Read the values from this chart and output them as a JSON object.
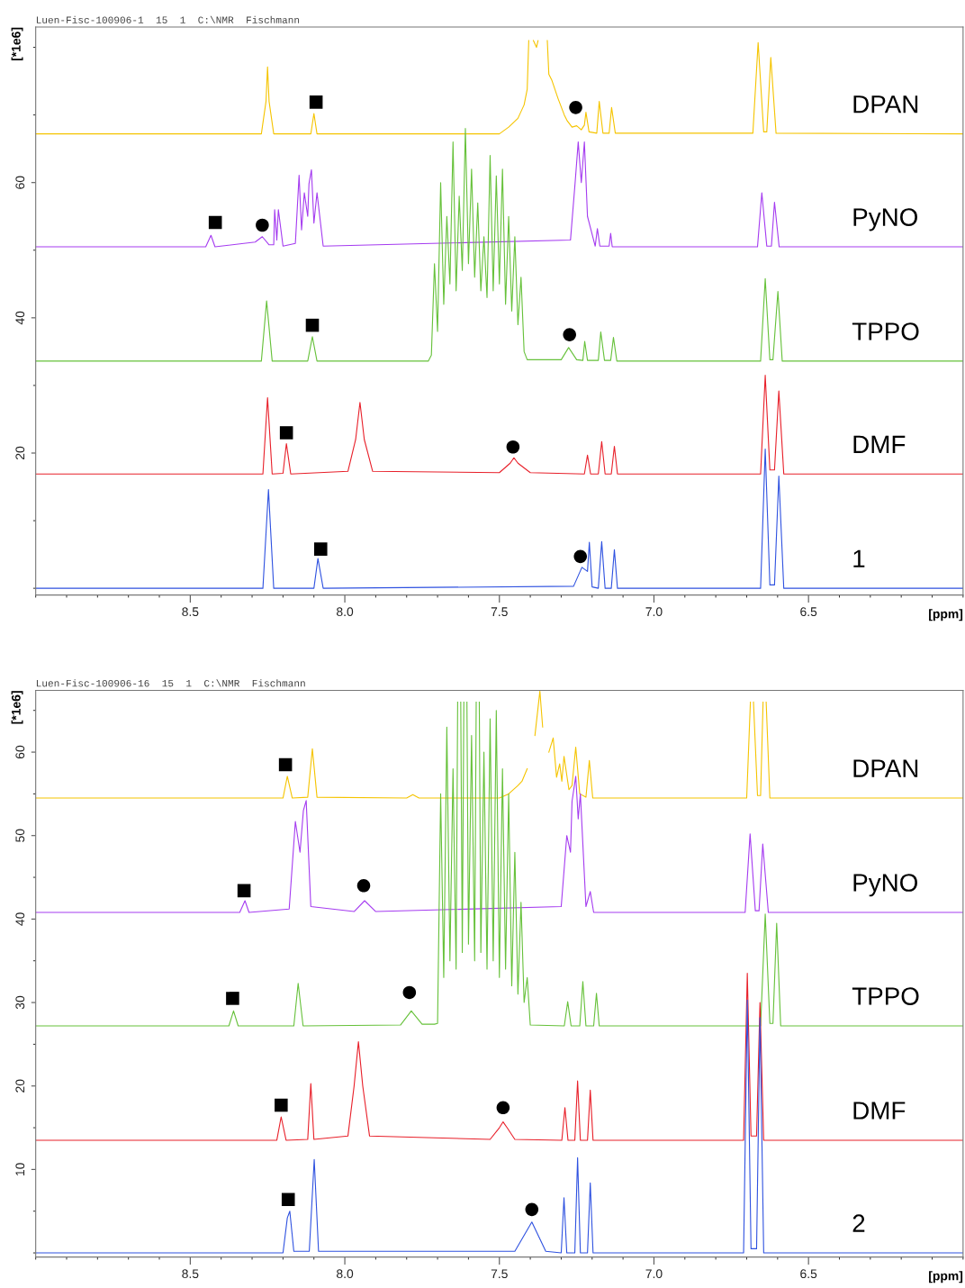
{
  "chart_data": [
    {
      "type": "line",
      "title": "Luen-Fisc-100906-1  15  1  C:\\NMR  Fischmann",
      "xlabel": "[ppm]",
      "ylabel": "[*1e6]",
      "xlim": [
        9.0,
        6.0
      ],
      "ylim": [
        -1,
        83
      ],
      "xticks": [
        {
          "value": 8.5,
          "label": "8.5"
        },
        {
          "value": 8.0,
          "label": "8.0"
        },
        {
          "value": 7.5,
          "label": "7.5"
        },
        {
          "value": 7.0,
          "label": "7.0"
        },
        {
          "value": 6.5,
          "label": "6.5"
        }
      ],
      "yticks": [
        20,
        40,
        60
      ],
      "grid": false,
      "legend": false,
      "marker": "none",
      "line_style": "solid",
      "series": [
        {
          "name": "DPAN",
          "color": "#f5c400",
          "x": [
            9.0,
            8.27,
            8.255,
            8.25,
            8.245,
            8.23,
            8.11,
            8.1,
            8.09,
            7.5,
            7.47,
            7.44,
            7.42,
            7.41,
            7.405,
            7.4,
            7.39,
            7.38,
            7.375,
            7.37,
            7.355,
            7.345,
            7.34,
            7.33,
            7.31,
            7.29,
            7.28,
            7.265,
            7.25,
            7.235,
            7.225,
            7.22,
            7.21,
            7.185,
            7.177,
            7.165,
            7.145,
            7.137,
            7.125,
            6.68,
            6.663,
            6.645,
            6.635,
            6.622,
            6.605,
            6.0
          ],
          "values": [
            67.2,
            67.2,
            72,
            77.1,
            72,
            67.2,
            67.2,
            70.2,
            67.2,
            67.2,
            68.2,
            69.5,
            71.5,
            73.8,
            81,
            null,
            81,
            80,
            81,
            null,
            null,
            81,
            76,
            75.1,
            72.4,
            70,
            69.1,
            68.2,
            68.4,
            67.8,
            68.5,
            70.4,
            67.5,
            67.3,
            72.0,
            67.3,
            67.3,
            71.1,
            67.3,
            67.3,
            80.7,
            67.5,
            67.5,
            78.5,
            67.3,
            67.2
          ]
        },
        {
          "name": "PyNO",
          "color": "#a53cf0",
          "x": [
            9.0,
            8.45,
            8.433,
            8.42,
            8.29,
            8.267,
            8.245,
            8.23,
            8.227,
            8.22,
            8.215,
            8.2,
            8.16,
            8.148,
            8.14,
            8.131,
            8.12,
            8.116,
            8.108,
            8.1,
            8.09,
            8.07,
            7.27,
            7.255,
            7.245,
            7.235,
            7.225,
            7.215,
            7.19,
            7.183,
            7.175,
            7.145,
            7.14,
            7.135,
            6.665,
            6.651,
            6.635,
            6.62,
            6.61,
            6.595,
            6.0
          ],
          "values": [
            50.5,
            50.5,
            52.2,
            50.5,
            51.2,
            52.0,
            50.8,
            50.8,
            56.0,
            51.5,
            56.0,
            50.6,
            51.0,
            61.1,
            53,
            58.5,
            55,
            59.8,
            61.9,
            54,
            58.5,
            50.6,
            51.5,
            60,
            66,
            60,
            66,
            55,
            50.6,
            53.2,
            50.6,
            50.6,
            52.5,
            50.5,
            50.5,
            58.5,
            50.6,
            50.6,
            57.1,
            50.5,
            50.5
          ]
        },
        {
          "name": "TPPO",
          "color": "#66c13a",
          "x": [
            9.0,
            8.27,
            8.253,
            8.235,
            8.12,
            8.105,
            8.09,
            7.73,
            7.72,
            7.71,
            7.7,
            7.69,
            7.68,
            7.67,
            7.66,
            7.65,
            7.64,
            7.63,
            7.62,
            7.61,
            7.6,
            7.59,
            7.58,
            7.57,
            7.56,
            7.55,
            7.54,
            7.53,
            7.52,
            7.51,
            7.5,
            7.49,
            7.48,
            7.47,
            7.46,
            7.45,
            7.44,
            7.43,
            7.42,
            7.41,
            7.3,
            7.276,
            7.25,
            7.23,
            7.224,
            7.215,
            7.18,
            7.172,
            7.16,
            7.14,
            7.131,
            7.12,
            6.655,
            6.64,
            6.625,
            6.615,
            6.599,
            6.585,
            6.0
          ],
          "values": [
            33.6,
            33.6,
            42.5,
            33.6,
            33.6,
            37.2,
            33.6,
            33.6,
            34.5,
            48,
            38,
            60,
            42,
            55,
            45,
            66,
            44,
            58,
            47,
            68,
            48,
            62,
            46,
            57,
            44,
            52,
            43,
            64,
            44,
            61,
            45,
            62,
            42,
            55,
            41,
            52,
            39,
            46,
            35,
            33.8,
            33.8,
            35.6,
            33.8,
            33.7,
            36.5,
            33.7,
            33.7,
            37.9,
            33.7,
            33.7,
            37.1,
            33.6,
            33.6,
            45.8,
            33.8,
            33.8,
            43.9,
            33.6,
            33.6
          ]
        },
        {
          "name": "DMF",
          "color": "#e8202a",
          "x": [
            9.0,
            8.265,
            8.25,
            8.235,
            8.2,
            8.189,
            8.175,
            7.99,
            7.965,
            7.951,
            7.937,
            7.91,
            7.5,
            7.465,
            7.453,
            7.44,
            7.4,
            7.225,
            7.215,
            7.205,
            7.18,
            7.169,
            7.158,
            7.138,
            7.128,
            7.118,
            6.655,
            6.64,
            6.625,
            6.61,
            6.596,
            6.58,
            6.0
          ],
          "values": [
            16.9,
            16.9,
            28.2,
            16.9,
            17,
            21.4,
            16.9,
            17.3,
            22,
            27.5,
            22,
            17.3,
            17.1,
            18.5,
            19.3,
            18.5,
            17.1,
            16.9,
            19.7,
            16.9,
            16.9,
            21.7,
            16.9,
            16.9,
            21.0,
            16.9,
            16.9,
            31.5,
            17.5,
            17.5,
            29.2,
            16.9,
            16.9
          ]
        },
        {
          "name": "1",
          "color": "#2f52e0",
          "x": [
            9.0,
            8.265,
            8.247,
            8.23,
            8.1,
            8.087,
            8.07,
            7.26,
            7.233,
            7.215,
            7.209,
            7.2,
            7.18,
            7.169,
            7.158,
            7.138,
            7.128,
            7.118,
            6.655,
            6.64,
            6.625,
            6.61,
            6.596,
            6.58,
            6.0
          ],
          "values": [
            0,
            0,
            14.6,
            0,
            0,
            4.4,
            0,
            0.3,
            3.1,
            2.5,
            6.8,
            0.2,
            0,
            6.9,
            0,
            0,
            5.7,
            0,
            0,
            20.6,
            0.5,
            0.5,
            16.6,
            0,
            0
          ]
        },
        {
          "type": "scatter",
          "marker": "square",
          "color": "#000000",
          "x": [
            8.093,
            8.419,
            8.105,
            8.189,
            8.078
          ],
          "values": [
            71.9,
            54.1,
            38.9,
            23.0,
            5.8
          ]
        },
        {
          "type": "scatter",
          "marker": "circle",
          "color": "#000000",
          "x": [
            7.253,
            8.267,
            7.273,
            7.456,
            7.238
          ],
          "values": [
            71.1,
            53.7,
            37.5,
            20.9,
            4.7
          ]
        }
      ]
    },
    {
      "type": "line",
      "title": "Luen-Fisc-100906-16  15  1  C:\\NMR  Fischmann",
      "xlabel": "[ppm]",
      "ylabel": "[*1e6]",
      "xlim": [
        9.0,
        6.0
      ],
      "ylim": [
        -0.5,
        67.4
      ],
      "xticks": [
        {
          "value": 8.5,
          "label": "8.5"
        },
        {
          "value": 8.0,
          "label": "8.0"
        },
        {
          "value": 7.5,
          "label": "7.5"
        },
        {
          "value": 7.0,
          "label": "7.0"
        },
        {
          "value": 6.5,
          "label": "6.5"
        }
      ],
      "yticks": [
        10,
        20,
        30,
        40,
        50,
        60
      ],
      "grid": false,
      "legend": false,
      "marker": "none",
      "line_style": "solid",
      "series": [
        {
          "name": "DPAN",
          "color": "#f5c400",
          "x": [
            9.0,
            8.2,
            8.186,
            8.17,
            8.12,
            8.105,
            8.09,
            7.8,
            7.78,
            7.76,
            7.5,
            7.47,
            7.44,
            7.427,
            7.41,
            7.398,
            7.385,
            7.369,
            7.36,
            7.352,
            7.34,
            7.326,
            7.315,
            7.305,
            7.298,
            7.291,
            7.275,
            7.265,
            7.253,
            7.24,
            7.22,
            7.209,
            7.198,
            6.7,
            6.688,
            6.683,
            6.678,
            6.665,
            6.655,
            6.647,
            6.642,
            6.637,
            6.625,
            6.0
          ],
          "values": [
            54.5,
            54.5,
            57.1,
            54.5,
            54.6,
            60.4,
            54.6,
            54.5,
            54.9,
            54.5,
            54.5,
            55,
            56,
            56.5,
            58,
            null,
            62,
            67.3,
            63,
            null,
            60,
            61.7,
            57,
            58.6,
            56.5,
            59.5,
            55.5,
            56,
            60.6,
            55,
            54.6,
            59.0,
            54.5,
            54.5,
            66,
            null,
            66,
            54.8,
            54.8,
            66,
            null,
            66,
            54.5,
            54.5
          ]
        },
        {
          "name": "PyNO",
          "color": "#a53cf0",
          "x": [
            9.0,
            8.34,
            8.323,
            8.31,
            8.18,
            8.16,
            8.145,
            8.134,
            8.125,
            8.11,
            7.97,
            7.936,
            7.9,
            7.3,
            7.282,
            7.27,
            7.265,
            7.253,
            7.245,
            7.238,
            7.22,
            7.206,
            7.195,
            6.705,
            6.689,
            6.672,
            6.66,
            6.648,
            6.63,
            6.0
          ],
          "values": [
            40.8,
            40.8,
            42.2,
            40.8,
            41.2,
            51.7,
            48,
            53.0,
            54.2,
            41.5,
            40.9,
            42.2,
            40.9,
            41.5,
            50.0,
            48,
            54.1,
            57.1,
            52,
            55,
            41.5,
            43.3,
            40.8,
            40.8,
            50.2,
            41.0,
            41.0,
            49.0,
            40.8,
            40.8
          ]
        },
        {
          "name": "TPPO",
          "color": "#66c13a",
          "x": [
            9.0,
            8.375,
            8.36,
            8.345,
            8.165,
            8.151,
            8.135,
            7.82,
            7.785,
            7.75,
            7.71,
            7.7,
            7.69,
            7.68,
            7.67,
            7.66,
            7.65,
            7.64,
            7.635,
            7.63,
            7.625,
            7.62,
            7.615,
            7.61,
            7.605,
            7.6,
            7.59,
            7.58,
            7.575,
            7.57,
            7.565,
            7.56,
            7.55,
            7.54,
            7.53,
            7.52,
            7.51,
            7.5,
            7.49,
            7.48,
            7.47,
            7.46,
            7.45,
            7.44,
            7.43,
            7.42,
            7.41,
            7.4,
            7.29,
            7.279,
            7.268,
            7.24,
            7.23,
            7.22,
            7.195,
            7.186,
            7.177,
            6.655,
            6.64,
            6.625,
            6.615,
            6.603,
            6.59,
            6.0
          ],
          "values": [
            27.2,
            27.2,
            29.0,
            27.2,
            27.2,
            32.3,
            27.2,
            27.3,
            29.0,
            27.4,
            27.4,
            27.5,
            55,
            33,
            63,
            35,
            58,
            34,
            66,
            null,
            66,
            36,
            66,
            null,
            66,
            37,
            62,
            35,
            66,
            null,
            66,
            36,
            60,
            34,
            64,
            35,
            65,
            33,
            58,
            34,
            55,
            32,
            48,
            31,
            42,
            30,
            33,
            27.3,
            27.2,
            30.1,
            27.2,
            27.2,
            32.5,
            27.2,
            27.2,
            31.1,
            27.2,
            27.2,
            40.6,
            27.5,
            27.5,
            39.5,
            27.2,
            27.2
          ]
        },
        {
          "name": "DMF",
          "color": "#e8202a",
          "x": [
            9.0,
            8.22,
            8.206,
            8.19,
            8.12,
            8.11,
            8.1,
            7.99,
            7.97,
            7.956,
            7.942,
            7.92,
            7.53,
            7.5,
            7.488,
            7.475,
            7.45,
            7.298,
            7.288,
            7.278,
            7.256,
            7.247,
            7.238,
            7.215,
            7.206,
            7.197,
            6.71,
            6.698,
            6.686,
            6.668,
            6.657,
            6.645,
            6.0
          ],
          "values": [
            13.5,
            13.5,
            16.3,
            13.5,
            13.6,
            20.3,
            13.6,
            14,
            20,
            25.3,
            20,
            14,
            13.6,
            15,
            15.7,
            15,
            13.6,
            13.5,
            17.4,
            13.5,
            13.5,
            20.6,
            13.5,
            13.5,
            19.5,
            13.5,
            13.5,
            33.5,
            14,
            14,
            30.0,
            13.5,
            13.5
          ]
        },
        {
          "name": "2",
          "color": "#2f52e0",
          "x": [
            9.0,
            8.2,
            8.186,
            8.178,
            8.165,
            8.115,
            8.099,
            8.085,
            7.45,
            7.395,
            7.35,
            7.3,
            7.291,
            7.282,
            7.256,
            7.247,
            7.238,
            7.215,
            7.206,
            7.197,
            6.71,
            6.698,
            6.686,
            6.668,
            6.657,
            6.645,
            6.0
          ],
          "values": [
            0,
            0,
            4.2,
            5.0,
            0.2,
            0.2,
            11.2,
            0.2,
            0.2,
            3.7,
            0.2,
            0,
            6.6,
            0,
            0,
            11.4,
            0,
            0,
            8.4,
            0,
            0,
            30.3,
            0.5,
            0.5,
            28.2,
            0,
            0
          ]
        },
        {
          "type": "scatter",
          "marker": "square",
          "color": "#000000",
          "x": [
            8.192,
            8.326,
            8.363,
            8.206,
            8.183
          ],
          "values": [
            58.5,
            43.4,
            30.5,
            17.7,
            6.4
          ]
        },
        {
          "type": "scatter",
          "marker": "circle",
          "color": "#000000",
          "x": [
            7.939,
            7.791,
            7.488,
            7.395
          ],
          "values": [
            44.0,
            31.2,
            17.4,
            5.2
          ]
        }
      ]
    }
  ]
}
